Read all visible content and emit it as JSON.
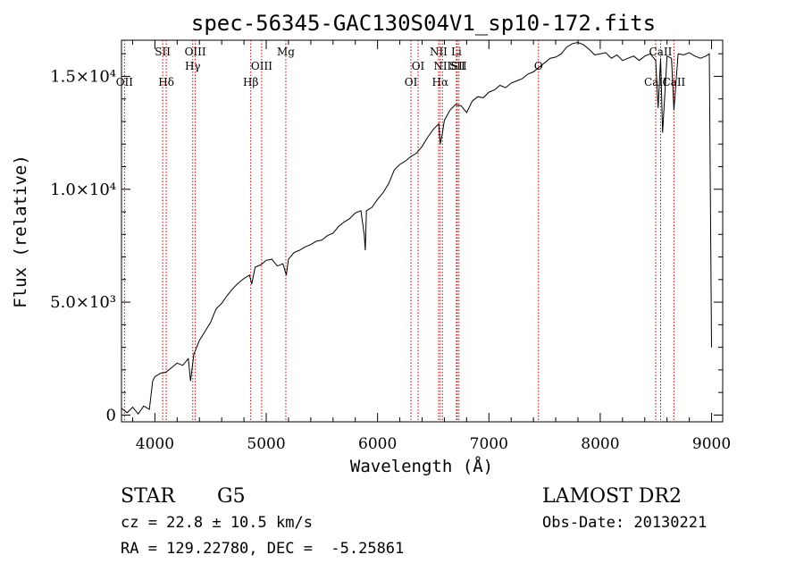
{
  "chart_data": {
    "type": "line",
    "title": "spec-56345-GAC130S04V1_sp10-172.fits",
    "xlabel": "Wavelength (Å)",
    "ylabel": "Flux (relative)",
    "xlim": [
      3700,
      9100
    ],
    "ylim": [
      -300,
      16600
    ],
    "x_ticks": [
      {
        "value": 4000,
        "label": "4000"
      },
      {
        "value": 5000,
        "label": "5000"
      },
      {
        "value": 6000,
        "label": "6000"
      },
      {
        "value": 7000,
        "label": "7000"
      },
      {
        "value": 8000,
        "label": "8000"
      },
      {
        "value": 9000,
        "label": "9000"
      }
    ],
    "y_ticks": [
      {
        "value": 0,
        "label": "0"
      },
      {
        "value": 5000,
        "label": "5.0×10³"
      },
      {
        "value": 10000,
        "label": "1.0×10⁴"
      },
      {
        "value": 15000,
        "label": "1.5×10⁴"
      }
    ],
    "grid": false,
    "line_color": "#000000",
    "marker_color": "#cc0000",
    "series": [
      {
        "x": [
          3700,
          3750,
          3800,
          3850,
          3900,
          3950,
          3980,
          4000,
          4050,
          4100,
          4150,
          4200,
          4250,
          4300,
          4320,
          4350,
          4400,
          4450,
          4500,
          4550,
          4600,
          4650,
          4700,
          4750,
          4800,
          4850,
          4870,
          4900,
          4950,
          5000,
          5050,
          5100,
          5150,
          5180,
          5200,
          5250,
          5300,
          5350,
          5400,
          5450,
          5500,
          5550,
          5600,
          5650,
          5700,
          5750,
          5800,
          5850,
          5880,
          5890,
          5900,
          5950,
          6000,
          6050,
          6100,
          6150,
          6200,
          6250,
          6300,
          6350,
          6400,
          6450,
          6500,
          6550,
          6563,
          6580,
          6600,
          6650,
          6700,
          6750,
          6800,
          6850,
          6900,
          6950,
          7000,
          7050,
          7100,
          7150,
          7200,
          7250,
          7300,
          7350,
          7400,
          7450,
          7500,
          7550,
          7600,
          7650,
          7700,
          7750,
          7800,
          7850,
          7900,
          7950,
          8000,
          8050,
          8100,
          8150,
          8200,
          8250,
          8300,
          8350,
          8400,
          8450,
          8498,
          8520,
          8542,
          8560,
          8600,
          8640,
          8662,
          8700,
          8750,
          8800,
          8850,
          8900,
          8950,
          8980,
          9000
        ],
        "y": [
          300,
          100,
          350,
          50,
          400,
          250,
          1500,
          1700,
          1850,
          1900,
          2100,
          2300,
          2200,
          2500,
          1500,
          2700,
          3300,
          3700,
          4100,
          4700,
          4950,
          5300,
          5600,
          5850,
          6050,
          6200,
          5800,
          6550,
          6650,
          6850,
          6900,
          6600,
          6700,
          6200,
          6900,
          7200,
          7300,
          7450,
          7550,
          7700,
          7750,
          7950,
          8050,
          8350,
          8550,
          8700,
          8950,
          9050,
          8000,
          7300,
          9050,
          9200,
          9550,
          9850,
          10250,
          10850,
          11100,
          11250,
          11450,
          11600,
          11900,
          12300,
          12650,
          12900,
          12000,
          12400,
          13050,
          13500,
          13750,
          13700,
          13400,
          13900,
          14100,
          14050,
          14300,
          14400,
          14600,
          14500,
          14700,
          14800,
          14900,
          15100,
          15200,
          15400,
          15600,
          15800,
          15850,
          16000,
          16300,
          16450,
          16500,
          16400,
          16200,
          15950,
          16000,
          16050,
          15800,
          15950,
          15700,
          15800,
          15900,
          15700,
          15900,
          16000,
          15700,
          13600,
          15800,
          12500,
          15900,
          15800,
          13500,
          16000,
          15950,
          16050,
          15900,
          15800,
          15900,
          16000,
          3000
        ]
      }
    ],
    "line_markers": [
      {
        "x": 3727,
        "label": "OII",
        "row": 3
      },
      {
        "x": 4070,
        "label": "SII",
        "row": 1
      },
      {
        "x": 4102,
        "label": "Hδ",
        "row": 3
      },
      {
        "x": 4340,
        "label": "Hγ",
        "row": 2
      },
      {
        "x": 4363,
        "label": "OIII",
        "row": 1
      },
      {
        "x": 4861,
        "label": "Hβ",
        "row": 3
      },
      {
        "x": 4959,
        "label": "OIII",
        "row": 2
      },
      {
        "x": 5176,
        "label": "Mg",
        "row": 1
      },
      {
        "x": 6300,
        "label": "OI",
        "row": 3
      },
      {
        "x": 6364,
        "label": "OI",
        "row": 2
      },
      {
        "x": 6548,
        "label": "NII",
        "row": 1
      },
      {
        "x": 6563,
        "label": "Hα",
        "row": 3
      },
      {
        "x": 6583,
        "label": "NII",
        "row": 2
      },
      {
        "x": 6708,
        "label": "Li",
        "row": 1
      },
      {
        "x": 6716,
        "label": "SII",
        "row": 2
      },
      {
        "x": 6731,
        "label": "SII",
        "row": 2
      },
      {
        "x": 7445,
        "label": "O",
        "row": 2
      },
      {
        "x": 8498,
        "label": "CaII",
        "row": 3
      },
      {
        "x": 8542,
        "label": "CaII",
        "row": 1
      },
      {
        "x": 8662,
        "label": "CaII",
        "row": 3
      }
    ]
  },
  "info": {
    "object_class": "STAR",
    "subclass": "G5",
    "survey": "LAMOST DR2",
    "cz": "cz = 22.8 ± 10.5 km/s",
    "obs_date": "Obs-Date: 20130221",
    "coords": "RA = 129.22780, DEC =  -5.25861"
  }
}
